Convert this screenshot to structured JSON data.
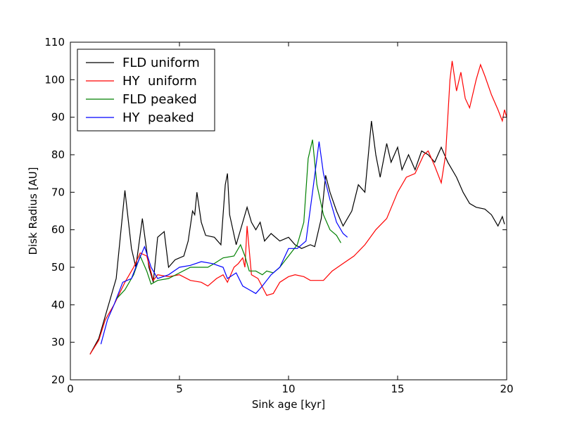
{
  "chart_data": {
    "type": "line",
    "xlabel": "Sink age [kyr]",
    "ylabel": "Disk Radius [AU]",
    "xlim": [
      0,
      20
    ],
    "ylim": [
      20,
      110
    ],
    "xticks": [
      0,
      5,
      10,
      15,
      20
    ],
    "yticks": [
      20,
      30,
      40,
      50,
      60,
      70,
      80,
      90,
      100,
      110
    ],
    "legend": "upper left",
    "series": [
      {
        "name": "FLD uniform",
        "color": "#000000",
        "x": [
          0.9,
          1.3,
          2.1,
          2.5,
          2.8,
          3.0,
          3.3,
          3.6,
          3.8,
          4.0,
          4.3,
          4.5,
          4.8,
          5.2,
          5.4,
          5.6,
          5.7,
          5.8,
          6.0,
          6.2,
          6.6,
          6.9,
          7.1,
          7.2,
          7.3,
          7.6,
          7.9,
          8.1,
          8.3,
          8.5,
          8.7,
          8.9,
          9.2,
          9.6,
          10.0,
          10.3,
          10.6,
          11.0,
          11.2,
          11.5,
          11.7,
          11.9,
          12.2,
          12.5,
          12.9,
          13.2,
          13.5,
          13.8,
          14.0,
          14.2,
          14.5,
          14.7,
          15.0,
          15.2,
          15.5,
          15.8,
          16.1,
          16.4,
          16.7,
          17.0,
          17.3,
          17.7,
          18.0,
          18.3,
          18.6,
          19.0,
          19.3,
          19.6,
          19.8,
          19.9
        ],
        "values": [
          26.8,
          31,
          47,
          70.5,
          55,
          50,
          63,
          50,
          46,
          58,
          59.5,
          50,
          52,
          53,
          57,
          65,
          64,
          70,
          62,
          58.5,
          58,
          56,
          72,
          75,
          64,
          56,
          62,
          66,
          62,
          60,
          62,
          57,
          59,
          57,
          58,
          56,
          55,
          56,
          55.5,
          63,
          74.5,
          70,
          65,
          61,
          65,
          72,
          70,
          89,
          80,
          74,
          83,
          78,
          82,
          76,
          80,
          76,
          81,
          80,
          78,
          82,
          78,
          74,
          70,
          67,
          66,
          65.5,
          64,
          61,
          63.5,
          61.5
        ]
      },
      {
        "name": "HY  uniform",
        "color": "#ff0000",
        "x": [
          0.9,
          1.3,
          1.6,
          2.0,
          2.5,
          2.9,
          3.2,
          3.5,
          3.8,
          4.0,
          4.5,
          5.0,
          5.5,
          6.0,
          6.3,
          6.7,
          7.0,
          7.2,
          7.5,
          7.7,
          7.9,
          8.0,
          8.1,
          8.3,
          8.6,
          9.0,
          9.3,
          9.6,
          10.0,
          10.3,
          10.7,
          11.0,
          11.3,
          11.6,
          12.0,
          12.5,
          13.0,
          13.5,
          14.0,
          14.5,
          15.0,
          15.4,
          15.8,
          16.2,
          16.4,
          16.7,
          17.0,
          17.2,
          17.4,
          17.5,
          17.7,
          17.9,
          18.1,
          18.3,
          18.6,
          18.8,
          19.0,
          19.3,
          19.6,
          19.8,
          19.9,
          20.0
        ],
        "values": [
          26.8,
          30.5,
          36,
          40,
          46,
          50,
          53.8,
          53,
          46.5,
          48,
          47.5,
          48,
          46.5,
          46,
          45,
          47,
          48,
          46,
          50,
          51,
          52.5,
          50,
          61,
          48,
          47,
          42.5,
          43,
          46,
          47.5,
          48,
          47.5,
          46.5,
          46.5,
          46.5,
          49,
          51,
          53,
          56,
          60,
          63,
          70,
          74,
          75,
          80,
          81,
          77,
          72.5,
          80,
          100,
          105,
          97,
          102,
          95,
          92.5,
          100,
          104,
          101,
          96,
          92,
          89,
          92,
          90
        ]
      },
      {
        "name": "FLD peaked",
        "color": "#008000",
        "x": [
          2.1,
          2.5,
          2.9,
          3.2,
          3.5,
          3.7,
          4.0,
          4.5,
          5.0,
          5.5,
          6.0,
          6.3,
          6.6,
          7.0,
          7.5,
          7.8,
          8.0,
          8.2,
          8.5,
          8.8,
          9.0,
          9.3,
          9.6,
          10.0,
          10.4,
          10.7,
          10.9,
          11.1,
          11.3,
          11.6,
          11.9,
          12.2,
          12.4
        ],
        "values": [
          41.5,
          44,
          48,
          53,
          49,
          45.5,
          46.5,
          47,
          48.5,
          50,
          50,
          50,
          51,
          52.5,
          53,
          56,
          53,
          49,
          49,
          48,
          49,
          48.5,
          50,
          53,
          56,
          62,
          79,
          84,
          72,
          64,
          60,
          58.5,
          56.5
        ]
      },
      {
        "name": "HY  peaked",
        "color": "#0000ff",
        "x": [
          1.4,
          1.7,
          2.0,
          2.4,
          2.8,
          3.0,
          3.4,
          3.7,
          4.0,
          4.5,
          5.0,
          5.5,
          6.0,
          6.5,
          7.0,
          7.2,
          7.6,
          7.9,
          8.2,
          8.5,
          8.8,
          9.2,
          9.6,
          10.0,
          10.4,
          10.8,
          11.1,
          11.4,
          11.6,
          11.9,
          12.2,
          12.5,
          12.7
        ],
        "values": [
          29.5,
          36,
          40,
          46,
          47,
          50,
          55.5,
          50,
          47,
          48,
          50,
          50.5,
          51.5,
          51,
          50,
          47,
          48.5,
          45,
          44,
          43,
          45,
          48,
          50,
          55,
          55,
          57,
          70,
          83.5,
          75,
          68,
          62,
          59,
          58
        ]
      }
    ]
  }
}
